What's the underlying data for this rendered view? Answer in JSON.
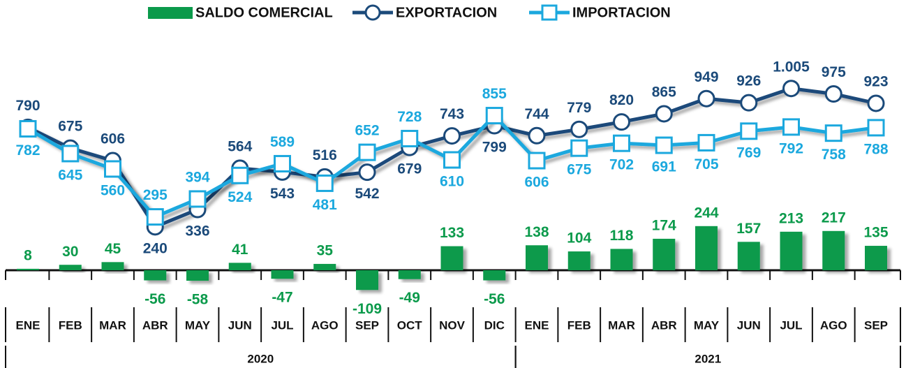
{
  "chart_data": {
    "type": "combo",
    "category_groups": [
      {
        "label": "2020",
        "categories": [
          "ENE",
          "FEB",
          "MAR",
          "ABR",
          "MAY",
          "JUN",
          "JUL",
          "AGO",
          "SEP",
          "OCT",
          "NOV",
          "DIC"
        ]
      },
      {
        "label": "2021",
        "categories": [
          "ENE",
          "FEB",
          "MAR",
          "ABR",
          "MAY",
          "JUN",
          "JUL",
          "AGO",
          "SEP"
        ]
      }
    ],
    "ylim": [
      -250,
      1250
    ],
    "legend": "top",
    "series": [
      {
        "name": "SALDO COMERCIAL",
        "type": "bar",
        "color": "#0b9a4b",
        "values": [
          8,
          30,
          45,
          -56,
          -58,
          41,
          -47,
          35,
          -109,
          -49,
          133,
          -56,
          138,
          104,
          118,
          174,
          244,
          157,
          213,
          217,
          135
        ]
      },
      {
        "name": "EXPORTACION",
        "type": "line",
        "marker": "circle",
        "color": "#1b4a7a",
        "values": [
          790,
          675,
          606,
          240,
          336,
          564,
          543,
          516,
          542,
          679,
          743,
          799,
          744,
          779,
          820,
          865,
          949,
          926,
          1005,
          975,
          923
        ],
        "value_labels": [
          "790",
          "675",
          "606",
          "240",
          "336",
          "564",
          "543",
          "516",
          "542",
          "679",
          "743",
          "799",
          "744",
          "779",
          "820",
          "865",
          "949",
          "926",
          "1.005",
          "975",
          "923"
        ]
      },
      {
        "name": "IMPORTACION",
        "type": "line",
        "marker": "square",
        "color": "#1ba8de",
        "values": [
          782,
          645,
          560,
          295,
          394,
          524,
          589,
          481,
          652,
          728,
          610,
          855,
          606,
          675,
          702,
          691,
          705,
          769,
          792,
          758,
          788
        ]
      }
    ]
  }
}
